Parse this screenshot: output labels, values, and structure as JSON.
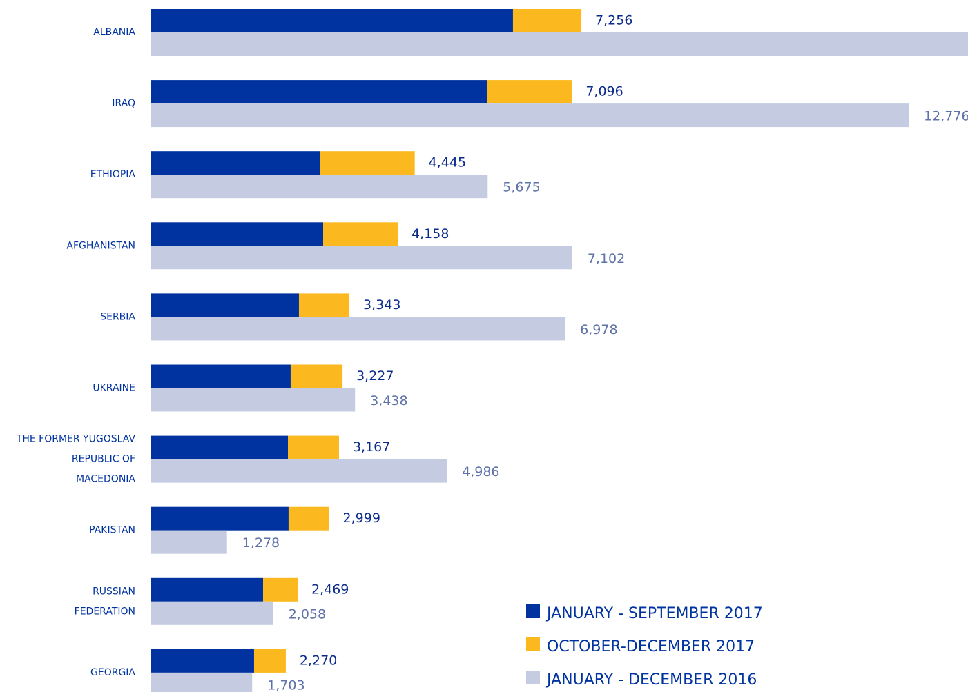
{
  "chart_data": {
    "type": "bar",
    "orientation": "horizontal",
    "categories": [
      [
        "ALBANIA"
      ],
      [
        "IRAQ"
      ],
      [
        "ETHIOPIA"
      ],
      [
        "AFGHANISTAN"
      ],
      [
        "SERBIA"
      ],
      [
        "UKRAINE"
      ],
      [
        "THE FORMER YUGOSLAV",
        "REPUBLIC OF",
        "MACEDONIA"
      ],
      [
        "PAKISTAN"
      ],
      [
        "RUSSIAN",
        "FEDERATION"
      ],
      [
        "GEORGIA"
      ]
    ],
    "series": [
      {
        "name": "JANUARY - SEPTEMBER  2017",
        "color": "#0033a0",
        "stack": "2017",
        "values": [
          6102,
          5671,
          2853,
          2900,
          2492,
          2352,
          2306,
          2317,
          1887,
          1735
        ]
      },
      {
        "name": "OCTOBER-DECEMBER 2017",
        "color": "#fbb81f",
        "stack": "2017",
        "values": [
          1154,
          1425,
          1592,
          1258,
          851,
          875,
          861,
          682,
          582,
          535
        ]
      },
      {
        "name": "JANUARY - DECEMBER 2016",
        "color": "#c5cce2",
        "stack": "2016",
        "values": [
          14000,
          12776,
          5675,
          7102,
          6978,
          3438,
          4986,
          1278,
          2058,
          1703
        ],
        "value_labels": [
          null,
          "12,776",
          "5,675",
          "7,102",
          "6,978",
          "3,438",
          "4,986",
          "1,278",
          "2,058",
          "1,703"
        ]
      }
    ],
    "totals": [
      7256,
      7096,
      4445,
      4158,
      3343,
      3227,
      3167,
      2999,
      2469,
      2270
    ],
    "total_labels": [
      "7,256",
      "7,096",
      "4,445",
      "4,158",
      "3,343",
      "3,227",
      "3,167",
      "2,999",
      "2,469",
      "2,270"
    ],
    "xlim": [
      0,
      13777
    ]
  }
}
